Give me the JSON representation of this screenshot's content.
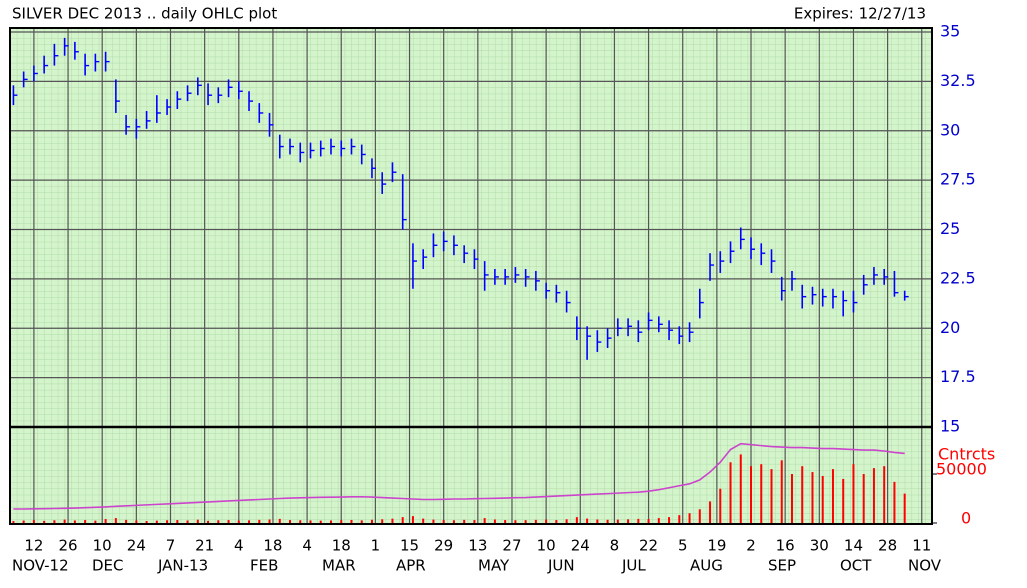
{
  "chart_data": [
    {
      "type": "ohlc",
      "title": "SILVER DEC 2013 .. daily OHLC plot",
      "subtitle": "Expires: 12/27/13",
      "color": "#0000ff",
      "grid": true,
      "xlim": [
        0,
        270
      ],
      "xticks": [
        {
          "value": 7,
          "label": "12"
        },
        {
          "value": 17,
          "label": "26"
        },
        {
          "value": 27,
          "label": "10"
        },
        {
          "value": 37,
          "label": "24"
        },
        {
          "value": 47,
          "label": "7"
        },
        {
          "value": 57,
          "label": "21"
        },
        {
          "value": 67,
          "label": "4"
        },
        {
          "value": 77,
          "label": "18"
        },
        {
          "value": 87,
          "label": "4"
        },
        {
          "value": 97,
          "label": "18"
        },
        {
          "value": 107,
          "label": "1"
        },
        {
          "value": 117,
          "label": "15"
        },
        {
          "value": 127,
          "label": "29"
        },
        {
          "value": 137,
          "label": "13"
        },
        {
          "value": 147,
          "label": "27"
        },
        {
          "value": 157,
          "label": "10"
        },
        {
          "value": 167,
          "label": "24"
        },
        {
          "value": 177,
          "label": "8"
        },
        {
          "value": 187,
          "label": "22"
        },
        {
          "value": 197,
          "label": "5"
        },
        {
          "value": 207,
          "label": "19"
        },
        {
          "value": 217,
          "label": "2"
        },
        {
          "value": 227,
          "label": "16"
        },
        {
          "value": 237,
          "label": "30"
        },
        {
          "value": 247,
          "label": "14"
        },
        {
          "value": 257,
          "label": "28"
        },
        {
          "value": 267,
          "label": "11"
        }
      ],
      "months": [
        "NOV-12",
        "DEC",
        "JAN-13",
        "FEB",
        "MAR",
        "APR",
        "MAY",
        "JUN",
        "JUL",
        "AUG",
        "SEP",
        "OCT",
        "NOV"
      ],
      "ylim": [
        15,
        35
      ],
      "yticks": [
        15,
        17.5,
        20,
        22.5,
        25,
        27.5,
        30,
        32.5,
        35
      ],
      "x": [
        1,
        4,
        7,
        10,
        13,
        16,
        19,
        22,
        25,
        28,
        31,
        34,
        37,
        40,
        43,
        46,
        49,
        52,
        55,
        58,
        61,
        64,
        67,
        70,
        73,
        76,
        79,
        82,
        85,
        88,
        91,
        94,
        97,
        100,
        103,
        106,
        109,
        112,
        115,
        118,
        121,
        124,
        127,
        130,
        133,
        136,
        139,
        142,
        145,
        148,
        151,
        154,
        157,
        160,
        163,
        166,
        169,
        172,
        175,
        178,
        181,
        184,
        187,
        190,
        193,
        196,
        199,
        202,
        205,
        208,
        211,
        214,
        217,
        220,
        223,
        226,
        229,
        232,
        235,
        238,
        241,
        244,
        247,
        250,
        253,
        256,
        259,
        262
      ],
      "high": [
        32.3,
        33.0,
        33.3,
        33.8,
        34.4,
        34.7,
        34.5,
        33.9,
        33.9,
        34.0,
        32.6,
        30.8,
        30.6,
        31.0,
        31.8,
        31.6,
        32.0,
        32.3,
        32.7,
        32.4,
        32.2,
        32.6,
        32.5,
        32.0,
        31.4,
        30.9,
        29.8,
        29.6,
        29.4,
        29.4,
        29.5,
        29.6,
        29.5,
        29.6,
        29.3,
        28.6,
        27.9,
        28.4,
        27.8,
        24.3,
        24.0,
        24.8,
        24.9,
        24.7,
        24.2,
        24.0,
        23.4,
        23.0,
        23.0,
        23.1,
        23.0,
        22.9,
        22.3,
        22.2,
        21.9,
        20.6,
        20.1,
        19.9,
        20.0,
        20.5,
        20.5,
        20.4,
        20.8,
        20.6,
        20.4,
        20.1,
        20.3,
        22.0,
        23.8,
        23.9,
        24.4,
        25.1,
        24.6,
        24.3,
        24.0,
        22.6,
        22.9,
        22.2,
        22.1,
        22.0,
        22.0,
        21.9,
        21.9,
        22.7,
        23.1,
        23.0,
        22.9,
        21.9
      ],
      "low": [
        31.3,
        32.2,
        32.5,
        32.9,
        33.3,
        33.8,
        33.6,
        32.8,
        33.0,
        33.0,
        30.9,
        29.8,
        29.6,
        30.1,
        30.4,
        30.8,
        31.1,
        31.5,
        31.8,
        31.3,
        31.4,
        31.7,
        31.6,
        31.0,
        30.4,
        29.7,
        28.6,
        28.8,
        28.4,
        28.6,
        28.7,
        28.8,
        28.7,
        28.8,
        28.3,
        27.6,
        26.8,
        27.4,
        25.0,
        22.0,
        23.0,
        23.6,
        23.9,
        23.7,
        23.3,
        23.0,
        21.9,
        22.2,
        22.2,
        22.3,
        22.1,
        21.9,
        21.5,
        21.3,
        20.8,
        19.4,
        18.4,
        18.8,
        19.0,
        19.6,
        19.6,
        19.3,
        19.9,
        19.8,
        19.4,
        19.2,
        19.3,
        20.5,
        22.4,
        22.8,
        23.3,
        24.0,
        23.5,
        23.2,
        22.8,
        21.4,
        21.9,
        21.0,
        21.2,
        21.1,
        21.0,
        20.6,
        20.8,
        21.7,
        22.2,
        22.2,
        21.6,
        21.4
      ],
      "close": [
        31.8,
        32.6,
        32.9,
        33.3,
        33.8,
        34.3,
        34.0,
        33.3,
        33.5,
        33.5,
        31.5,
        30.2,
        30.2,
        30.5,
        30.9,
        31.2,
        31.6,
        31.9,
        32.3,
        31.8,
        31.8,
        32.2,
        32.0,
        31.5,
        30.9,
        30.3,
        29.2,
        29.2,
        28.9,
        29.0,
        29.1,
        29.2,
        29.1,
        29.2,
        28.8,
        28.1,
        27.3,
        27.9,
        25.5,
        23.4,
        23.6,
        24.2,
        24.4,
        24.2,
        23.8,
        23.5,
        22.7,
        22.6,
        22.6,
        22.7,
        22.6,
        22.4,
        21.9,
        21.8,
        21.3,
        20.0,
        19.6,
        19.3,
        19.5,
        20.0,
        20.1,
        19.8,
        20.4,
        20.2,
        19.9,
        19.6,
        19.8,
        21.3,
        23.2,
        23.4,
        23.9,
        24.5,
        24.0,
        23.8,
        23.4,
        21.9,
        22.5,
        21.6,
        21.7,
        21.6,
        21.6,
        21.4,
        21.3,
        22.2,
        22.7,
        22.6,
        21.8,
        21.6
      ]
    },
    {
      "type": "volume",
      "ylabel": "Cntrcts",
      "ylim": [
        0,
        98000
      ],
      "yticks": [
        0,
        50000
      ],
      "label_color": "#ff0000",
      "series": [
        {
          "type": "bar",
          "color": "#ff0000",
          "values": [
            2000,
            2500,
            3000,
            2200,
            2800,
            3500,
            2600,
            3000,
            2400,
            4000,
            5000,
            3200,
            2600,
            2000,
            2400,
            2800,
            3000,
            2600,
            3400,
            2200,
            2800,
            3000,
            2500,
            2700,
            3200,
            3600,
            4200,
            3000,
            2800,
            2600,
            2400,
            2600,
            2900,
            3100,
            2700,
            3300,
            3800,
            4400,
            6000,
            7000,
            4500,
            3500,
            3000,
            2800,
            3200,
            3000,
            5000,
            3600,
            3000,
            2800,
            2900,
            3200,
            3500,
            3000,
            3800,
            6000,
            4500,
            3600,
            3300,
            3500,
            3800,
            4200,
            4000,
            5000,
            6000,
            8000,
            10000,
            14000,
            22000,
            35000,
            62000,
            70000,
            58000,
            60000,
            55000,
            64000,
            50000,
            58000,
            52000,
            48000,
            55000,
            45000,
            60000,
            50000,
            56000,
            58000,
            42000,
            30000
          ]
        },
        {
          "type": "line",
          "color": "#cc44cc",
          "values": [
            14300,
            14300,
            14500,
            14600,
            14800,
            15000,
            15200,
            15600,
            16000,
            16400,
            17000,
            17500,
            18000,
            18500,
            19000,
            19500,
            20000,
            20500,
            21000,
            21500,
            22000,
            22500,
            23000,
            23500,
            24000,
            24500,
            25000,
            25500,
            25700,
            26000,
            26200,
            26400,
            26500,
            26700,
            26800,
            26500,
            26000,
            25500,
            25000,
            24500,
            24000,
            24000,
            24200,
            24500,
            24500,
            24800,
            25000,
            25200,
            25500,
            25800,
            26000,
            26500,
            27000,
            27500,
            28000,
            28500,
            29000,
            29500,
            30000,
            30500,
            31000,
            31500,
            32500,
            34000,
            36000,
            38000,
            40000,
            44000,
            52000,
            62000,
            75000,
            81000,
            80000,
            79000,
            78000,
            77500,
            77000,
            77000,
            76500,
            76000,
            76000,
            75500,
            75000,
            74500,
            74500,
            73500,
            72000,
            71000
          ]
        }
      ]
    }
  ]
}
